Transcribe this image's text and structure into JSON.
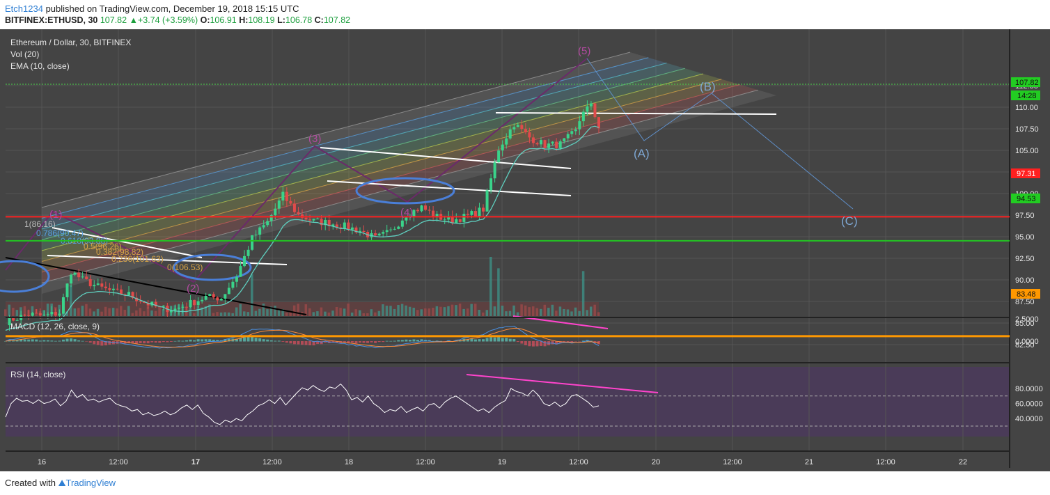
{
  "header": {
    "user": "Etch1234",
    "published": "published on TradingView.com, December 19, 2018 15:15 UTC",
    "symbol": "BITFINEX:ETHUSD, 30",
    "price": "107.82",
    "change": "+3.74 (+3.59%)",
    "o_label": "O:",
    "o": "106.91",
    "h_label": "H:",
    "h": "108.19",
    "l_label": "L:",
    "l": "106.78",
    "c_label": "C:",
    "c": "107.82"
  },
  "panes": {
    "main_title": "Ethereum / Dollar, 30, BITFINEX",
    "vol_label": "Vol (20)",
    "ema_label": "EMA (10, close)",
    "macd_label": "MACD (12, 26, close, 9)",
    "rsi_label": "RSI (14, close)"
  },
  "badges": {
    "last_price": "107.82",
    "countdown": "14:28",
    "red_level": "97.31",
    "green_level": "94.53",
    "orange_level": "83.48"
  },
  "colors": {
    "background": "#444444",
    "rsi_band": "#4a3b58",
    "red_line": "#ff2020",
    "green_line": "#22c422",
    "orange_line": "#ff9800",
    "badge_green": "#22cc22",
    "pink": "#ff44cc",
    "wave_label": "#b24aa0",
    "abc_label": "#7fa8d4",
    "circle": "#4a7fd8"
  },
  "wave_labels": {
    "w1": "(1)",
    "w2": "(2)",
    "w3": "(3)",
    "w4": "(4)",
    "w5": "(5)",
    "a": "(A)",
    "b": "(B)",
    "c": "(C)"
  },
  "fib_labels": [
    "1(86.16)",
    "0.786(90.47)",
    "0.618(93.86)",
    "0.5(96.26)",
    "0.382(98.82)",
    "0.236(101.63)",
    "0(106.53)"
  ],
  "chart_data": [
    {
      "type": "candlestick",
      "title": "Ethereum / Dollar, 30, BITFINEX",
      "x_ticks": [
        "16",
        "12:00",
        "17",
        "12:00",
        "18",
        "12:00",
        "19",
        "12:00",
        "20",
        "12:00",
        "21",
        "12:00",
        "22"
      ],
      "y_ticks": [
        82.5,
        85.0,
        87.5,
        90.0,
        92.5,
        95.0,
        97.5,
        100.0,
        102.5,
        105.0,
        107.5,
        110.0,
        112.5
      ],
      "ylim": [
        81.5,
        114.0
      ],
      "price_path": [
        [
          0,
          85.2
        ],
        [
          6,
          86.0
        ],
        [
          10,
          85.8
        ],
        [
          14,
          86.2
        ],
        [
          17,
          91.0
        ],
        [
          20,
          90.0
        ],
        [
          24,
          89.2
        ],
        [
          28,
          88.6
        ],
        [
          32,
          88.3
        ],
        [
          36,
          87.4
        ],
        [
          40,
          86.7
        ],
        [
          44,
          86.6
        ],
        [
          48,
          87.3
        ],
        [
          52,
          88.0
        ],
        [
          56,
          87.9
        ],
        [
          60,
          90.5
        ],
        [
          64,
          94.8
        ],
        [
          68,
          96.7
        ],
        [
          72,
          99.8
        ],
        [
          76,
          97.5
        ],
        [
          80,
          96.8
        ],
        [
          84,
          96.6
        ],
        [
          88,
          96.2
        ],
        [
          92,
          95.7
        ],
        [
          96,
          94.8
        ],
        [
          100,
          95.6
        ],
        [
          104,
          97.6
        ],
        [
          108,
          98.4
        ],
        [
          112,
          97.3
        ],
        [
          116,
          96.9
        ],
        [
          120,
          97.4
        ],
        [
          124,
          98.2
        ],
        [
          128,
          105.2
        ],
        [
          132,
          108.1
        ],
        [
          136,
          106.5
        ],
        [
          140,
          105.6
        ],
        [
          144,
          105.7
        ],
        [
          148,
          107.2
        ],
        [
          150,
          109.7
        ],
        [
          152,
          110.1
        ],
        [
          154,
          107.8
        ]
      ],
      "levels": {
        "red": 97.31,
        "green": 94.53,
        "orange": 83.48,
        "last": 107.82
      }
    },
    {
      "type": "line",
      "title": "MACD (12, 26, close, 9)",
      "y_ticks": [
        0.0,
        2.5
      ],
      "ylim": [
        -1.2,
        2.8
      ]
    },
    {
      "type": "line",
      "title": "RSI (14, close)",
      "y_ticks": [
        40.0,
        60.0,
        80.0
      ],
      "ylim": [
        28,
        92
      ],
      "band": [
        30,
        70
      ],
      "values": [
        42,
        60,
        67,
        63,
        64,
        60,
        65,
        60,
        62,
        66,
        57,
        63,
        78,
        68,
        72,
        64,
        66,
        62,
        65,
        67,
        60,
        57,
        55,
        50,
        52,
        45,
        48,
        44,
        46,
        50,
        45,
        48,
        54,
        58,
        52,
        58,
        47,
        42,
        35,
        32,
        38,
        35,
        40,
        37,
        45,
        50,
        57,
        60,
        65,
        60,
        68,
        58,
        66,
        74,
        81,
        78,
        84,
        79,
        76,
        82,
        80,
        86,
        78,
        65,
        68,
        62,
        70,
        60,
        55,
        48,
        52,
        50,
        56,
        48,
        52,
        55,
        50,
        58,
        60,
        54,
        62,
        67,
        70,
        65,
        60,
        55,
        50,
        53,
        48,
        55,
        60,
        64,
        80,
        76,
        74,
        70,
        78,
        71,
        60,
        57,
        62,
        56,
        60,
        70,
        72,
        67,
        62,
        55,
        57
      ]
    }
  ]
}
